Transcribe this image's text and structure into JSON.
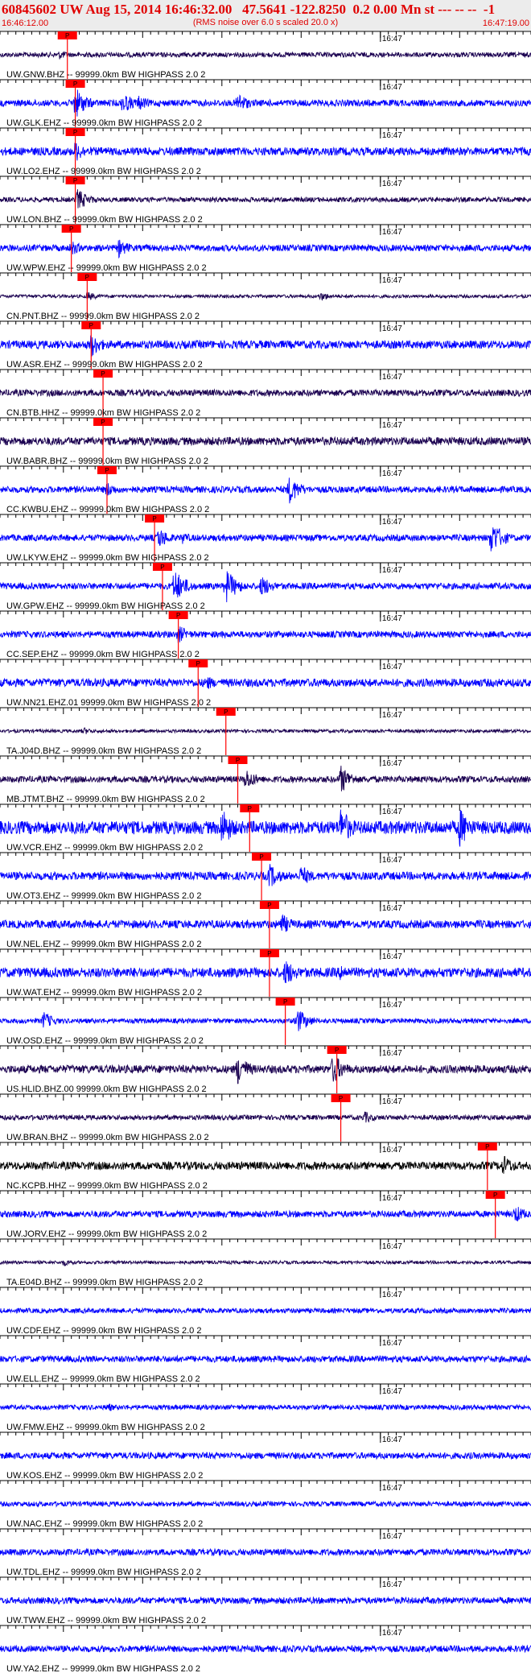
{
  "header": {
    "title": "60845602 UW Aug 15, 2014 16:46:32.00   47.5641 -122.8250  0.2 0.00 Mn st --- -- --  -1",
    "subtitle": "(RMS noise over 6.0 s scaled 20.0 x)",
    "start_time": "16:46:12.00",
    "end_time": "16:47:19.00"
  },
  "chart_data": {
    "type": "line",
    "title": "60845602 UW Aug 15, 2014 16:46:32.00   47.5641 -122.8250  0.2 0.00 Mn st --- -- --  -1",
    "subtitle": "(RMS noise over 6.0 s scaled 20.0 x)",
    "x_range": [
      "16:46:12.00",
      "16:47:19.00"
    ],
    "minute_mark_label": "16:47",
    "pick_label": "P",
    "colors": {
      "blue": "#0000ff",
      "navy": "#1a0050",
      "black": "#000000",
      "pick": "#ff0000",
      "tick": "#000000"
    },
    "traces": [
      {
        "label": "UW.GNW.BHZ -- 99999.0km BW  HIGHPASS  2.0  2",
        "color": "navy",
        "amp": 3,
        "pick_time": "16:46:20.5",
        "bursts": [
          {
            "t": "16:46:19.5",
            "amp": 6
          }
        ]
      },
      {
        "label": "UW.GLK.EHZ -- 99999.0km BW  HIGHPASS  2.0  2",
        "color": "blue",
        "amp": 4,
        "pick_time": "16:46:21.5",
        "bursts": [
          {
            "t": "16:46:21.5",
            "amp": 20
          },
          {
            "t": "16:46:27.5",
            "amp": 14
          },
          {
            "t": "16:46:29.5",
            "amp": 10
          },
          {
            "t": "16:46:42.0",
            "amp": 14
          }
        ]
      },
      {
        "label": "UW.LO2.EHZ -- 99999.0km BW  HIGHPASS  2.0  2",
        "color": "blue",
        "amp": 5,
        "pick_time": "16:46:21.5",
        "bursts": [
          {
            "t": "16:46:21.5",
            "amp": 14
          }
        ]
      },
      {
        "label": "UW.LON.BHZ -- 99999.0km BW  HIGHPASS  2.0  2",
        "color": "navy",
        "amp": 3,
        "pick_time": "16:46:21.5",
        "bursts": [
          {
            "t": "16:46:21.8",
            "amp": 14
          }
        ]
      },
      {
        "label": "UW.WPW.EHZ -- 99999.0km BW  HIGHPASS  2.0  2",
        "color": "blue",
        "amp": 4,
        "pick_time": "16:46:21.0",
        "bursts": [
          {
            "t": "16:46:21.0",
            "amp": 10
          },
          {
            "t": "16:46:27.0",
            "amp": 12
          }
        ]
      },
      {
        "label": "CN.PNT.BHZ -- 99999.0km BW  HIGHPASS  2.0  2",
        "color": "navy",
        "amp": 2,
        "pick_time": "16:46:23.0",
        "bursts": [
          {
            "t": "16:46:23.0",
            "amp": 6
          },
          {
            "t": "16:46:52.5",
            "amp": 6
          }
        ]
      },
      {
        "label": "UW.ASR.EHZ -- 99999.0km BW  HIGHPASS  2.0  2",
        "color": "blue",
        "amp": 5,
        "pick_time": "16:46:23.5",
        "bursts": [
          {
            "t": "16:46:23.5",
            "amp": 16
          }
        ]
      },
      {
        "label": "CN.BTB.HHZ -- 99999.0km BW  HIGHPASS  2.0  2",
        "color": "navy",
        "amp": 4,
        "pick_time": "16:46:25.0",
        "bursts": []
      },
      {
        "label": "UW.BABR.BHZ -- 99999.0km BW  HIGHPASS  2.0  2",
        "color": "navy",
        "amp": 5,
        "pick_time": "16:46:25.0",
        "bursts": []
      },
      {
        "label": "CC.KWBU.EHZ -- 99999.0km BW  HIGHPASS  2.0  2",
        "color": "blue",
        "amp": 4,
        "pick_time": "16:46:25.5",
        "bursts": [
          {
            "t": "16:46:25.5",
            "amp": 10
          },
          {
            "t": "16:46:48.5",
            "amp": 18
          }
        ]
      },
      {
        "label": "UW.LKYW.EHZ -- 99999.0km BW  HIGHPASS  2.0  2",
        "color": "blue",
        "amp": 4,
        "pick_time": "16:46:31.5",
        "bursts": [
          {
            "t": "16:46:32.0",
            "amp": 14
          },
          {
            "t": "16:46:35.0",
            "amp": 8
          },
          {
            "t": "16:47:14.0",
            "amp": 22
          }
        ]
      },
      {
        "label": "UW.GPW.EHZ -- 99999.0km BW  HIGHPASS  2.0  2",
        "color": "blue",
        "amp": 4,
        "pick_time": "16:46:32.5",
        "bursts": [
          {
            "t": "16:46:34.0",
            "amp": 22
          },
          {
            "t": "16:46:40.5",
            "amp": 22
          },
          {
            "t": "16:46:45.0",
            "amp": 14
          }
        ]
      },
      {
        "label": "CC.SEP.EHZ -- 99999.0km BW  HIGHPASS  2.0  2",
        "color": "blue",
        "amp": 4,
        "pick_time": "16:46:34.5",
        "bursts": [
          {
            "t": "16:46:34.5",
            "amp": 12
          }
        ]
      },
      {
        "label": "UW.NN21.EHZ.01 99999.0km BW  HIGHPASS  2.0  2",
        "color": "blue",
        "amp": 5,
        "pick_time": "16:46:37.0",
        "bursts": [
          {
            "t": "16:46:38.0",
            "amp": 10
          }
        ]
      },
      {
        "label": "TA.J04D.BHZ -- 99999.0km BW  HIGHPASS  2.0  2",
        "color": "navy",
        "amp": 2,
        "pick_time": "16:46:40.5",
        "bursts": [
          {
            "t": "16:46:22.5",
            "amp": 5
          }
        ]
      },
      {
        "label": "MB.JTMT.BHZ -- 99999.0km BW  HIGHPASS  2.0  2",
        "color": "navy",
        "amp": 4,
        "pick_time": "16:46:42.0",
        "bursts": [
          {
            "t": "16:46:43.0",
            "amp": 14
          },
          {
            "t": "16:46:55.0",
            "amp": 18
          }
        ]
      },
      {
        "label": "UW.VCR.EHZ -- 99999.0km BW  HIGHPASS  2.0  2",
        "color": "blue",
        "amp": 8,
        "pick_time": "16:46:43.5",
        "bursts": [
          {
            "t": "16:46:40.0",
            "amp": 26
          },
          {
            "t": "16:46:55.0",
            "amp": 26
          },
          {
            "t": "16:47:10.0",
            "amp": 26
          }
        ]
      },
      {
        "label": "UW.OT3.EHZ -- 99999.0km BW  HIGHPASS  2.0  2",
        "color": "blue",
        "amp": 5,
        "pick_time": "16:46:45.0",
        "bursts": [
          {
            "t": "16:46:46.0",
            "amp": 16
          },
          {
            "t": "16:46:50.0",
            "amp": 14
          }
        ]
      },
      {
        "label": "UW.NEL.EHZ -- 99999.0km BW  HIGHPASS  2.0  2",
        "color": "blue",
        "amp": 5,
        "pick_time": "16:46:46.0",
        "bursts": [
          {
            "t": "16:46:47.5",
            "amp": 14
          }
        ]
      },
      {
        "label": "UW.WAT.EHZ -- 99999.0km BW  HIGHPASS  2.0  2",
        "color": "blue",
        "amp": 6,
        "pick_time": "16:46:46.0",
        "bursts": [
          {
            "t": "16:46:48.0",
            "amp": 18
          },
          {
            "t": "16:46:55.0",
            "amp": 12
          }
        ]
      },
      {
        "label": "UW.OSD.EHZ -- 99999.0km BW  HIGHPASS  2.0  2",
        "color": "blue",
        "amp": 3,
        "pick_time": "16:46:48.0",
        "bursts": [
          {
            "t": "16:46:17.5",
            "amp": 12
          },
          {
            "t": "16:46:49.5",
            "amp": 16
          }
        ]
      },
      {
        "label": "US.HLID.BHZ.00 99999.0km BW  HIGHPASS  2.0  2",
        "color": "navy",
        "amp": 5,
        "pick_time": "16:46:54.5",
        "bursts": [
          {
            "t": "16:46:42.0",
            "amp": 20
          },
          {
            "t": "16:46:54.0",
            "amp": 20
          }
        ]
      },
      {
        "label": "UW.BRAN.BHZ -- 99999.0km BW  HIGHPASS  2.0  2",
        "color": "navy",
        "amp": 3,
        "pick_time": "16:46:55.0",
        "bursts": [
          {
            "t": "16:46:58.0",
            "amp": 8
          }
        ]
      },
      {
        "label": "NC.KCPB.HHZ -- 99999.0km BW  HIGHPASS  2.0  2",
        "color": "black",
        "amp": 5,
        "pick_time": "16:47:13.5",
        "bursts": [
          {
            "t": "16:47:15.5",
            "amp": 14
          }
        ]
      },
      {
        "label": "UW.JORV.EHZ -- 99999.0km BW  HIGHPASS  2.0  2",
        "color": "blue",
        "amp": 4,
        "pick_time": "16:47:14.5",
        "bursts": [
          {
            "t": "16:47:17.0",
            "amp": 12
          }
        ]
      },
      {
        "label": "TA.E04D.BHZ -- 99999.0km BW  HIGHPASS  2.0  2",
        "color": "navy",
        "amp": 2,
        "pick_time": null,
        "bursts": [
          {
            "t": "16:46:20.0",
            "amp": 5
          }
        ]
      },
      {
        "label": "UW.CDF.EHZ -- 99999.0km BW  HIGHPASS  2.0  2",
        "color": "blue",
        "amp": 3,
        "pick_time": null,
        "bursts": []
      },
      {
        "label": "UW.ELL.EHZ -- 99999.0km BW  HIGHPASS  2.0  2",
        "color": "blue",
        "amp": 4,
        "pick_time": null,
        "bursts": []
      },
      {
        "label": "UW.FMW.EHZ -- 99999.0km BW  HIGHPASS  2.0  2",
        "color": "blue",
        "amp": 3,
        "pick_time": null,
        "bursts": [
          {
            "t": "16:46:25.5",
            "amp": 6
          }
        ]
      },
      {
        "label": "UW.KOS.EHZ -- 99999.0km BW  HIGHPASS  2.0  2",
        "color": "blue",
        "amp": 4,
        "pick_time": null,
        "bursts": []
      },
      {
        "label": "UW.NAC.EHZ -- 99999.0km BW  HIGHPASS  2.0  2",
        "color": "blue",
        "amp": 3,
        "pick_time": null,
        "bursts": []
      },
      {
        "label": "UW.TDL.EHZ -- 99999.0km BW  HIGHPASS  2.0  2",
        "color": "blue",
        "amp": 4,
        "pick_time": null,
        "bursts": []
      },
      {
        "label": "UW.TWW.EHZ -- 99999.0km BW  HIGHPASS  2.0  2",
        "color": "blue",
        "amp": 4,
        "pick_time": null,
        "bursts": []
      },
      {
        "label": "UW.YA2.EHZ -- 99999.0km BW  HIGHPASS  2.0  2",
        "color": "blue",
        "amp": 4,
        "pick_time": null,
        "bursts": []
      }
    ]
  }
}
